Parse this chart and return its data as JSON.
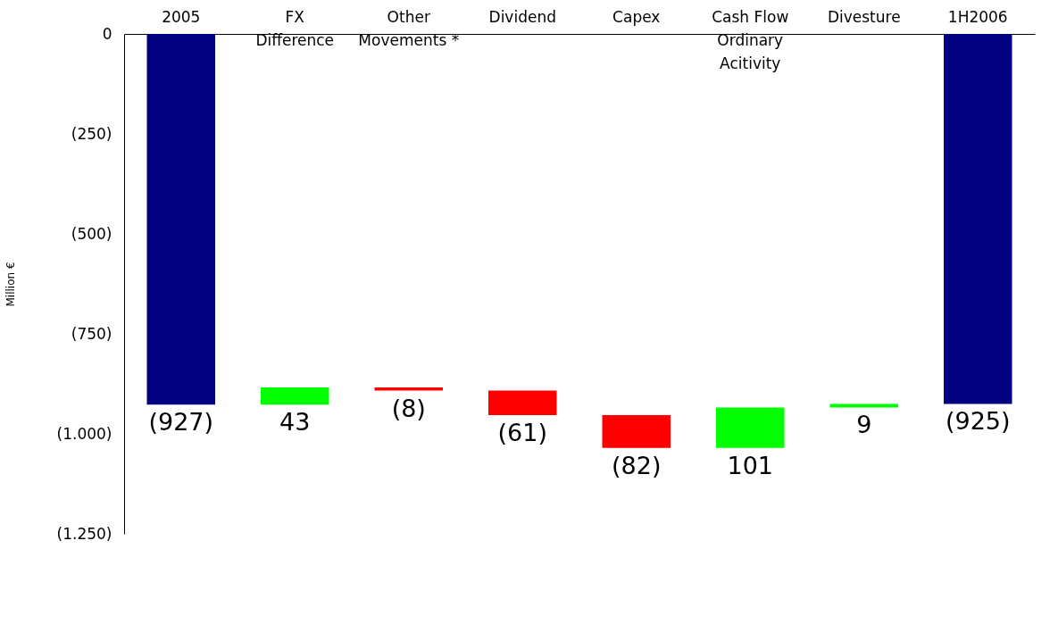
{
  "chart_data": {
    "type": "bar",
    "ylabel": "Million €",
    "categories": [
      "2005",
      "FX Difference",
      "Other Movements *",
      "Dividend",
      "Capex",
      "Cash Flow Ordinary Acitivity",
      "Divesture",
      "1H2006"
    ],
    "base": [
      0,
      -927,
      -884,
      -892,
      -953,
      -1035,
      -934,
      0
    ],
    "values": [
      -927,
      43,
      -8,
      -61,
      -82,
      101,
      9,
      -925
    ],
    "colors": [
      "#000080",
      "#00ff00",
      "#ff0000",
      "#ff0000",
      "#ff0000",
      "#00ff00",
      "#00ff00",
      "#000080"
    ],
    "value_labels": [
      "(927)",
      "43",
      "(8)",
      "(61)",
      "(82)",
      "101",
      "9",
      "(925)"
    ],
    "ylim": [
      -1250,
      0
    ],
    "yticks": [
      0,
      {
        "value": -250,
        "label": "(250)"
      },
      {
        "value": -500,
        "label": "(500)"
      },
      {
        "value": -750,
        "label": "(750)"
      },
      {
        "value": -1000,
        "label": "(1.000)"
      },
      {
        "value": -1250,
        "label": "(1.250)"
      }
    ],
    "grid": false
  }
}
